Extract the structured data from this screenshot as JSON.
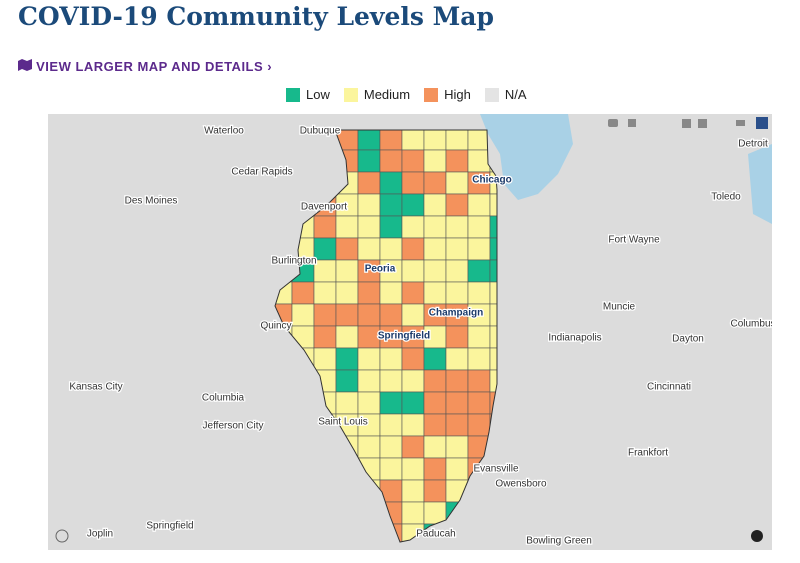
{
  "header": {
    "title": "COVID-19 Community Levels Map",
    "link": "VIEW LARGER MAP AND DETAILS"
  },
  "legend": [
    {
      "label": "Low",
      "color": "#17b98c"
    },
    {
      "label": "Medium",
      "color": "#fbf59d"
    },
    {
      "label": "High",
      "color": "#f4925c"
    },
    {
      "label": "N/A",
      "color": "#e4e4e4"
    }
  ],
  "map": {
    "places": [
      "Waterloo",
      "Dubuque",
      "Cedar Rapids",
      "Des Moines",
      "Davenport",
      "Chicago",
      "Burlington",
      "Peoria",
      "Fort Wayne",
      "Toledo",
      "Detroit",
      "Muncie",
      "Champaign",
      "Quincy",
      "Springfield",
      "Indianapolis",
      "Dayton",
      "Columbus",
      "Kansas City",
      "Columbia",
      "Cincinnati",
      "Jefferson City",
      "Saint Louis",
      "Frankfort",
      "Evansville",
      "Owensboro",
      "Joplin",
      "Springfield",
      "Paducah",
      "Bowling Green"
    ]
  }
}
